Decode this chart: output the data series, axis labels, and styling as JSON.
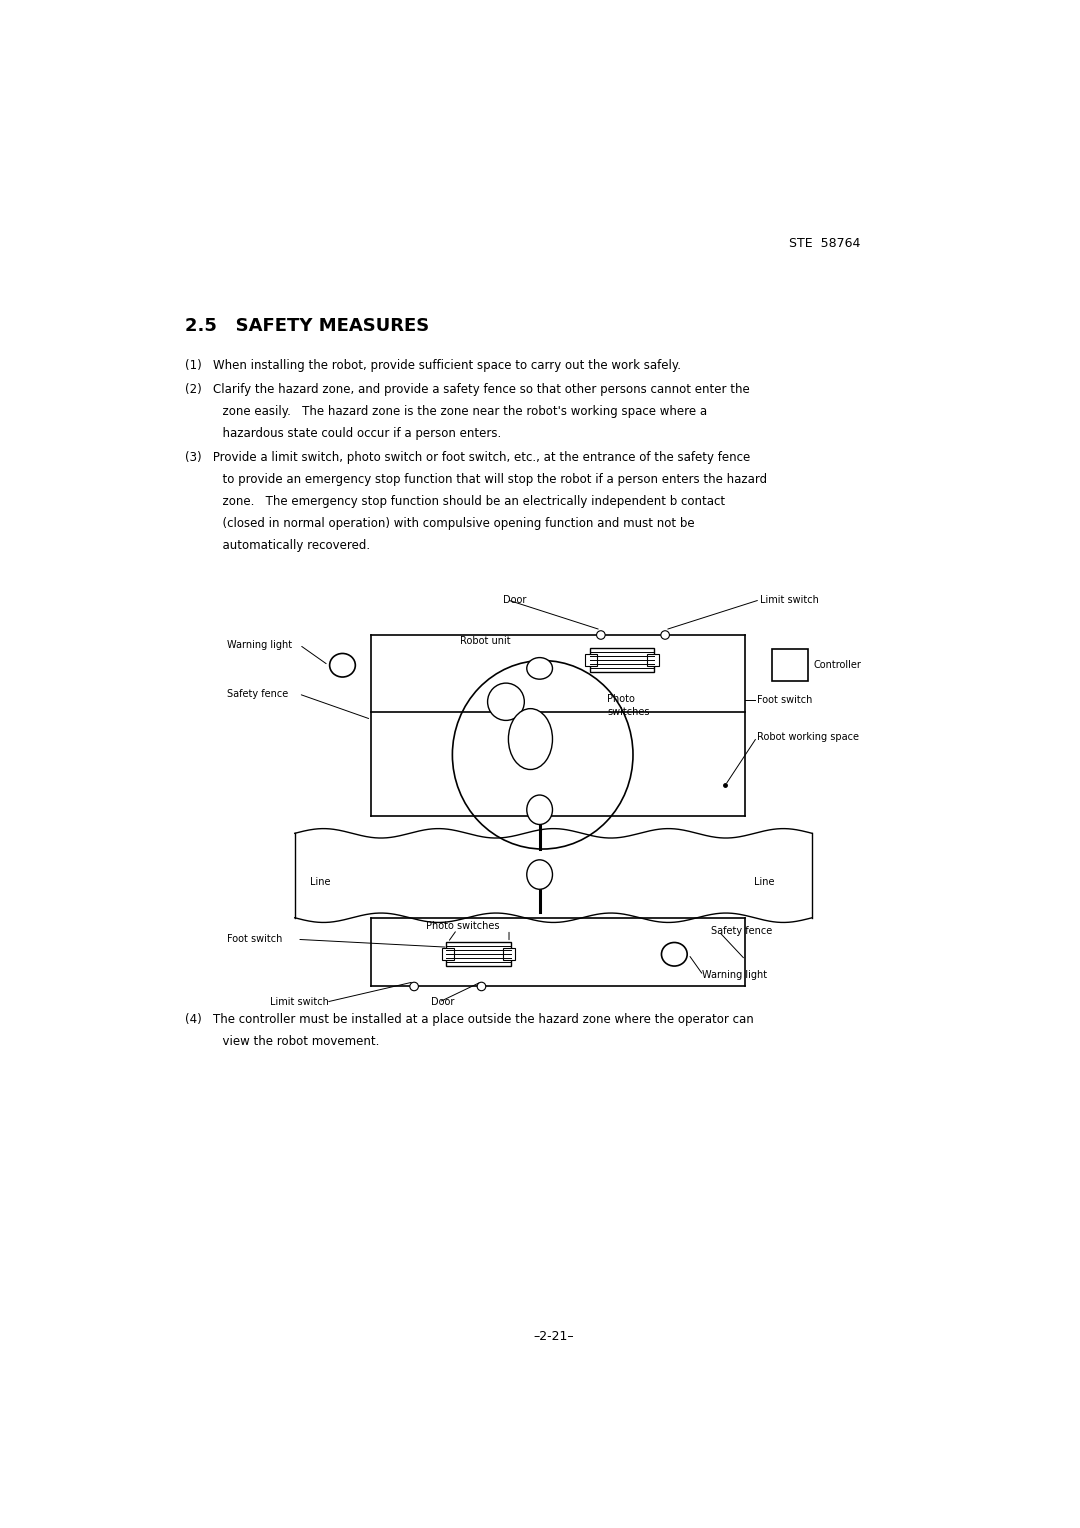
{
  "header_text": "STE  58764",
  "section_title": "2.5   SAFETY MEASURES",
  "para1": "(1)   When installing the robot, provide sufficient space to carry out the work safely.",
  "para2_l1": "(2)   Clarify the hazard zone, and provide a safety fence so that other persons cannot enter the",
  "para2_l2": "          zone easily.   The hazard zone is the zone near the robot's working space where a",
  "para2_l3": "          hazardous state could occur if a person enters.",
  "para3_l1": "(3)   Provide a limit switch, photo switch or foot switch, etc., at the entrance of the safety fence",
  "para3_l2": "          to provide an emergency stop function that will stop the robot if a person enters the hazard",
  "para3_l3": "          zone.   The emergency stop function should be an electrically independent b contact",
  "para3_l4": "          (closed in normal operation) with compulsive opening function and must not be",
  "para3_l5": "          automatically recovered.",
  "para4_l1": "(4)   The controller must be installed at a place outside the hazard zone where the operator can",
  "para4_l2": "          view the robot movement.",
  "footer_text": "–2-21–",
  "bg_color": "#ffffff",
  "text_color": "#000000"
}
